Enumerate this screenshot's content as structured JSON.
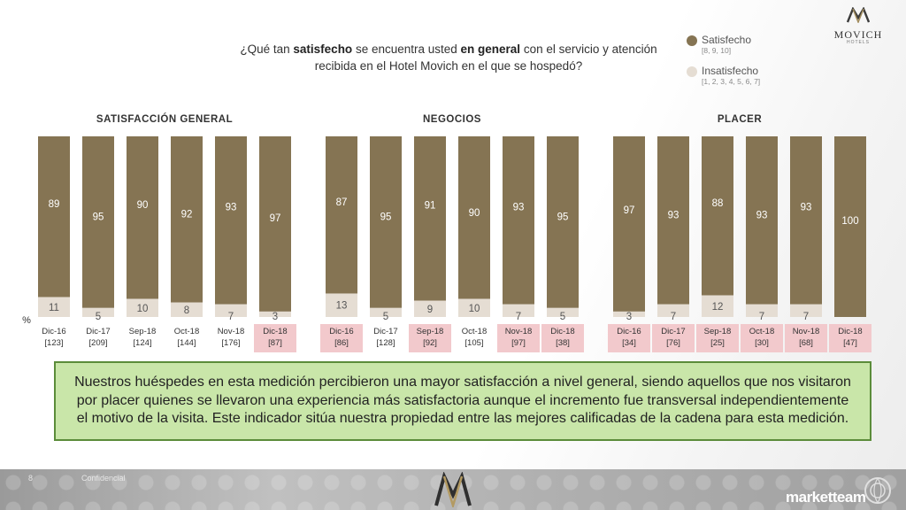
{
  "question": {
    "prefix": "¿Qué tan ",
    "bold1": "satisfecho",
    "middle": " se encuentra usted ",
    "bold2": "en general",
    "suffix": " con el servicio y atención recibida en el Hotel Movich en el que se hospedó?"
  },
  "legend": {
    "satisfied_label": "Satisfecho",
    "satisfied_range": "[8, 9, 10]",
    "unsatisfied_label": "Insatisfecho",
    "unsatisfied_range": "[1, 2, 3, 4, 5, 6, 7]"
  },
  "brand": {
    "name": "MOVICH",
    "sub": "HOTELS"
  },
  "colors": {
    "satisfied": "#857453",
    "unsatisfied": "#e5ddd3",
    "highlight": "#f2c9cc"
  },
  "percent_symbol": "%",
  "chart_data": [
    {
      "type": "bar",
      "stacked": true,
      "title": "SATISFACCIÓN GENERAL",
      "categories": [
        "Dic-16",
        "Dic-17",
        "Sep-18",
        "Oct-18",
        "Nov-18",
        "Dic-18"
      ],
      "sample_sizes": [
        "[123]",
        "[209]",
        "[124]",
        "[144]",
        "[176]",
        "[87]"
      ],
      "highlighted": [
        false,
        false,
        false,
        false,
        false,
        true
      ],
      "series": [
        {
          "name": "Satisfecho",
          "values": [
            89,
            95,
            90,
            92,
            93,
            97
          ]
        },
        {
          "name": "Insatisfecho",
          "values": [
            11,
            5,
            10,
            8,
            7,
            3
          ]
        }
      ],
      "ylim": [
        0,
        100
      ]
    },
    {
      "type": "bar",
      "stacked": true,
      "title": "NEGOCIOS",
      "categories": [
        "Dic-16",
        "Dic-17",
        "Sep-18",
        "Oct-18",
        "Nov-18",
        "Dic-18"
      ],
      "sample_sizes": [
        "[86]",
        "[128]",
        "[92]",
        "[105]",
        "[97]",
        "[38]"
      ],
      "highlighted": [
        true,
        false,
        true,
        false,
        true,
        true
      ],
      "series": [
        {
          "name": "Satisfecho",
          "values": [
            87,
            95,
            91,
            90,
            93,
            95
          ]
        },
        {
          "name": "Insatisfecho",
          "values": [
            13,
            5,
            9,
            10,
            7,
            5
          ]
        }
      ],
      "ylim": [
        0,
        100
      ]
    },
    {
      "type": "bar",
      "stacked": true,
      "title": "PLACER",
      "categories": [
        "Dic-16",
        "Dic-17",
        "Sep-18",
        "Oct-18",
        "Nov-18",
        "Dic-18"
      ],
      "sample_sizes": [
        "[34]",
        "[76]",
        "[25]",
        "[30]",
        "[68]",
        "[47]"
      ],
      "highlighted": [
        true,
        true,
        true,
        true,
        true,
        true
      ],
      "series": [
        {
          "name": "Satisfecho",
          "values": [
            97,
            93,
            88,
            93,
            93,
            100
          ]
        },
        {
          "name": "Insatisfecho",
          "values": [
            3,
            7,
            12,
            7,
            7,
            0
          ]
        }
      ],
      "ylim": [
        0,
        100
      ]
    }
  ],
  "note": "Nuestros huéspedes en esta medición percibieron una mayor satisfacción a nivel general, siendo aquellos que nos visitaron por placer quienes se llevaron una experiencia más satisfactoria aunque el incremento fue transversal independientemente el motivo de la visita. Este indicador sitúa nuestra propiedad entre las mejores calificadas de la cadena para esta medición.",
  "footer": {
    "page": "8",
    "confidential": "Confidencial",
    "company": "marketteam"
  }
}
